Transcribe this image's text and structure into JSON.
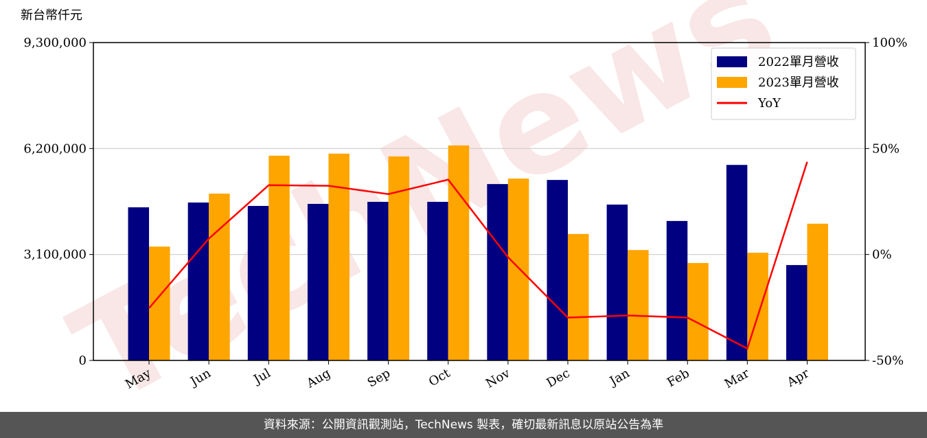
{
  "chart_data": {
    "type": "bar",
    "y_label": "新台幣仟元",
    "watermark": "TechNews",
    "categories": [
      "May",
      "Jun",
      "Jul",
      "Aug",
      "Sep",
      "Oct",
      "Nov",
      "Dec",
      "Jan",
      "Feb",
      "Mar",
      "Apr"
    ],
    "series": [
      {
        "name": "2022單月營收",
        "color": "#000080",
        "values": [
          4480000,
          4620000,
          4520000,
          4580000,
          4640000,
          4640000,
          5160000,
          5280000,
          4560000,
          4080000,
          5720000,
          2790000
        ]
      },
      {
        "name": "2023單月營收",
        "color": "#ffa500",
        "values": [
          3330000,
          4880000,
          5990000,
          6050000,
          5970000,
          6290000,
          5320000,
          3700000,
          3230000,
          2850000,
          3150000,
          4000000
        ]
      },
      {
        "name": "YoY",
        "color": "#ff0000",
        "type": "line",
        "axis": "y2",
        "values": [
          -25.3,
          7.5,
          32.7,
          32.4,
          28.5,
          35.3,
          -1.3,
          -29.8,
          -28.8,
          -29.8,
          -44.4,
          43.7
        ]
      }
    ],
    "ylim": [
      0,
      9300000
    ],
    "yticks": [
      0,
      {
        "value": 3100000,
        "label": "3,100,000"
      },
      {
        "value": 6200000,
        "label": "6,200,000"
      },
      {
        "value": 9300000,
        "label": "9,300,000"
      }
    ],
    "y2lim": [
      -50,
      100
    ],
    "y2ticks": [
      {
        "value": -50,
        "label": "-50%"
      },
      {
        "value": 0,
        "label": "0%"
      },
      {
        "value": 50,
        "label": "50%"
      },
      {
        "value": 100,
        "label": "100%"
      }
    ],
    "grid": true,
    "legend": "upper right",
    "source": "資料來源：公開資訊觀測站，TechNews 製表，確切最新訊息以原站公告為準"
  }
}
